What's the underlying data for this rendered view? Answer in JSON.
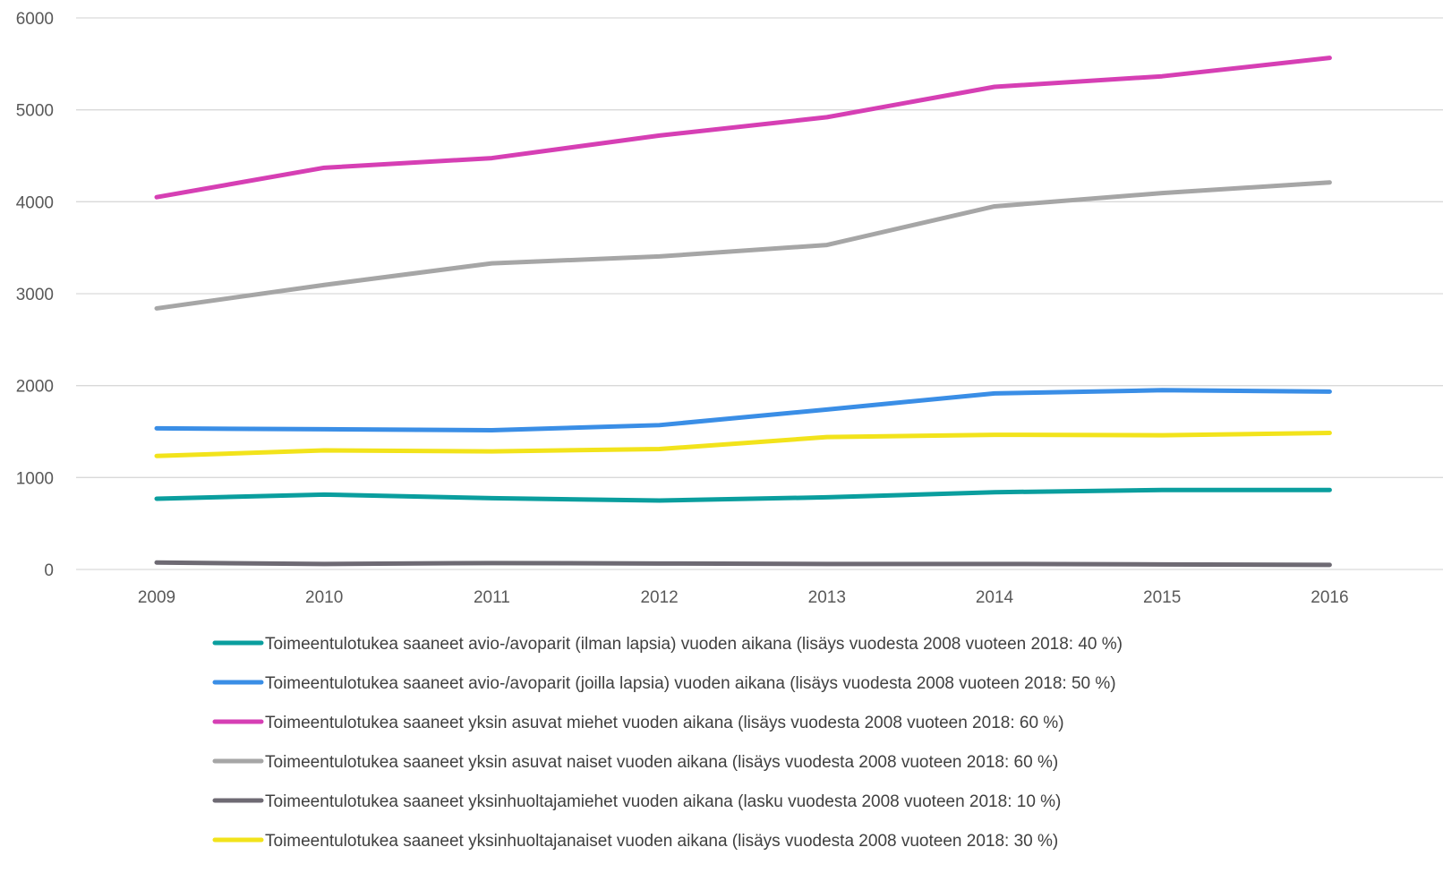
{
  "chart_data": {
    "type": "line",
    "title": "",
    "xlabel": "",
    "ylabel": "",
    "x": [
      "2009",
      "2010",
      "2011",
      "2012",
      "2013",
      "2014",
      "2015",
      "2016"
    ],
    "ylim": [
      0,
      6000
    ],
    "yticks": [
      "0",
      "1000",
      "2000",
      "3000",
      "4000",
      "5000",
      "6000"
    ],
    "grid": true,
    "legend_position": "bottom",
    "series": [
      {
        "name": "Toimeentulotukea saaneet avio-/avoparit (ilman lapsia) vuoden aikana (lisäys vuodesta 2008 vuoteen 2018: 40 %)",
        "color": "#0a9e9e",
        "values": [
          770,
          815,
          775,
          750,
          785,
          840,
          865,
          865
        ]
      },
      {
        "name": "Toimeentulotukea saaneet avio-/avoparit (joilla lapsia) vuoden aikana  (lisäys vuodesta 2008 vuoteen 2018: 50 %)",
        "color": "#3a8ee6",
        "values": [
          1535,
          1525,
          1515,
          1570,
          1740,
          1915,
          1950,
          1935
        ]
      },
      {
        "name": "Toimeentulotukea saaneet yksin asuvat miehet vuoden aikana  (lisäys vuodesta 2008 vuoteen 2018: 60 %)",
        "color": "#d63fb4",
        "values": [
          4050,
          4370,
          4475,
          4720,
          4920,
          5250,
          5365,
          5565
        ]
      },
      {
        "name": "Toimeentulotukea saaneet yksin asuvat naiset vuoden aikana  (lisäys vuodesta 2008 vuoteen 2018: 60 %)",
        "color": "#a6a6a6",
        "values": [
          2840,
          3095,
          3330,
          3405,
          3530,
          3950,
          4095,
          4210
        ]
      },
      {
        "name": "Toimeentulotukea saaneet yksinhuoltajamiehet vuoden aikana  (lasku vuodesta 2008 vuoteen 2018: 10 %)",
        "color": "#6e6a73",
        "values": [
          75,
          60,
          70,
          65,
          60,
          60,
          55,
          50
        ]
      },
      {
        "name": "Toimeentulotukea saaneet yksinhuoltajanaiset vuoden aikana  (lisäys vuodesta 2008 vuoteen 2018: 30 %)",
        "color": "#f2e31b",
        "values": [
          1235,
          1295,
          1285,
          1310,
          1440,
          1465,
          1460,
          1485
        ]
      }
    ]
  }
}
